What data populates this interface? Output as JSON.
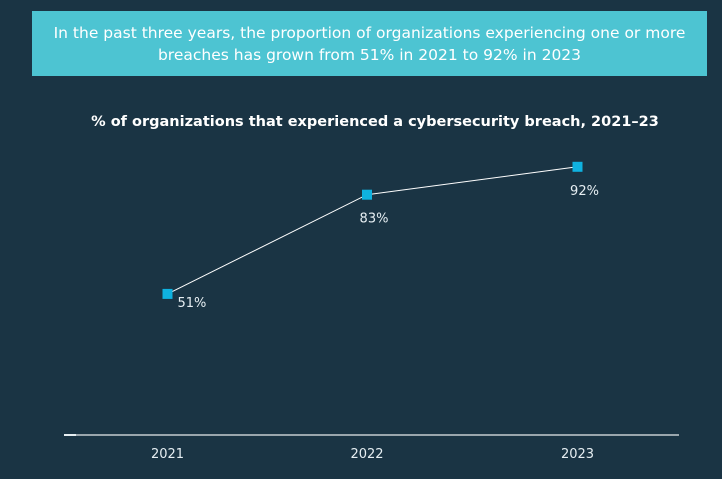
{
  "banner": {
    "text": "In the past three years, the proportion of organizations experiencing one or more breaches has grown from 51% in 2021 to 92% in 2023"
  },
  "colors": {
    "background": "#1a3444",
    "banner": "#4dc4d2",
    "marker": "#0fb2e0",
    "line": "#ffffff",
    "axis": "#9aa6ad"
  },
  "chart_data": {
    "type": "line",
    "title": "% of organizations that experienced a cybersecurity breach, 2021–23",
    "xlabel": "",
    "ylabel": "",
    "categories": [
      "2021",
      "2022",
      "2023"
    ],
    "series": [
      {
        "name": "% of organizations that experienced a breach",
        "values": [
          51,
          83,
          92
        ],
        "labels": [
          "51%",
          "83%",
          "92%"
        ]
      }
    ],
    "ylim": [
      0,
      100
    ],
    "grid": false,
    "legend": "none"
  }
}
